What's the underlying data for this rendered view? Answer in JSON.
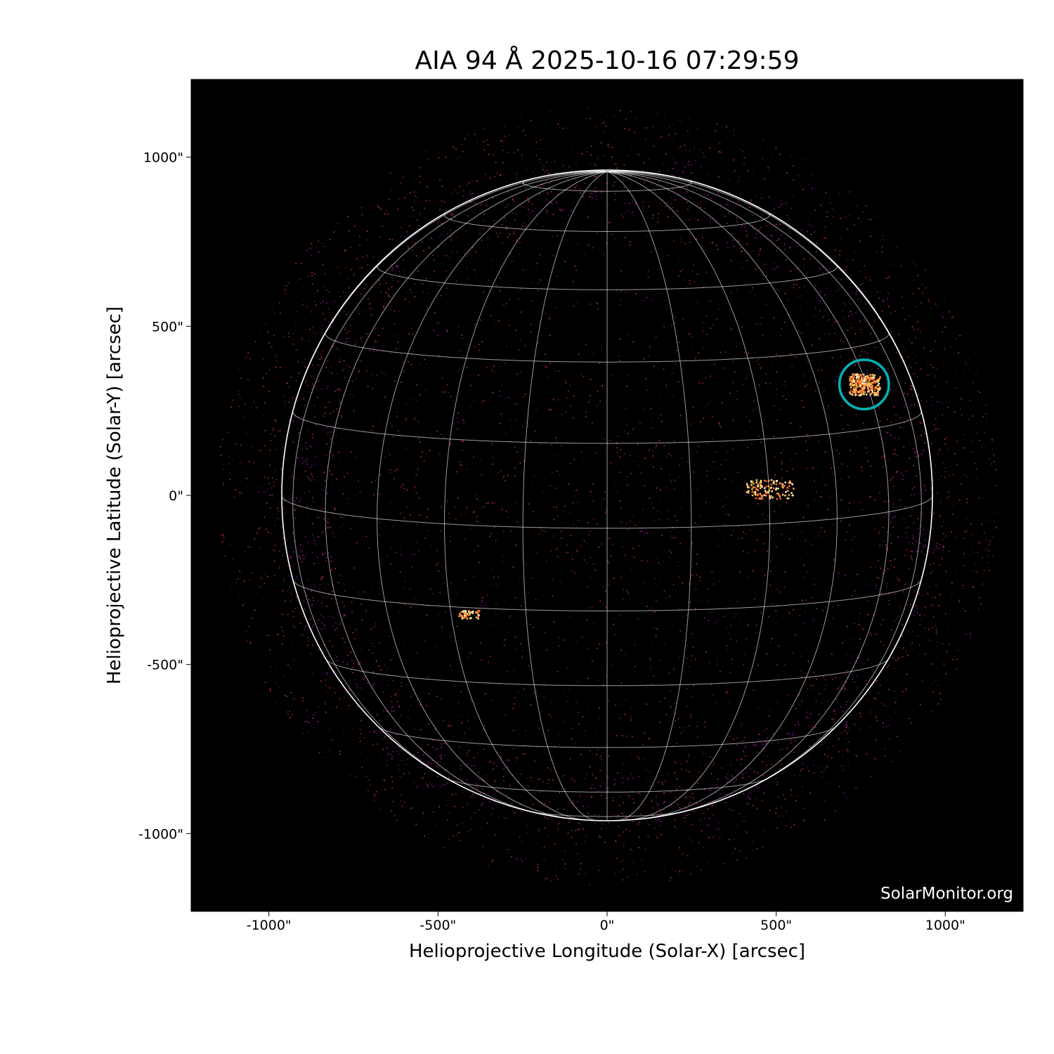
{
  "chart_data": {
    "type": "image",
    "title": "AIA 94 Å 2025-10-16 07:29:59",
    "xlabel": "Helioprojective Longitude (Solar-X) [arcsec]",
    "ylabel": "Helioprojective Latitude (Solar-Y) [arcsec]",
    "xlim": [
      -1230,
      1230
    ],
    "ylim": [
      -1230,
      1230
    ],
    "x_ticks": [
      {
        "value": -1000,
        "label": "-1000\""
      },
      {
        "value": -500,
        "label": "-500\""
      },
      {
        "value": 0,
        "label": "0\""
      },
      {
        "value": 500,
        "label": "500\""
      },
      {
        "value": 1000,
        "label": "1000\""
      }
    ],
    "y_ticks": [
      {
        "value": 1000,
        "label": "1000\""
      },
      {
        "value": 500,
        "label": "500\""
      },
      {
        "value": 0,
        "label": "0\""
      },
      {
        "value": -500,
        "label": "-500\""
      },
      {
        "value": -1000,
        "label": "-1000\""
      }
    ],
    "solar_radius_arcsec": 962,
    "heliographic_grid_spacing_deg": 15,
    "colormap": "sdoaia94",
    "background_color": "#000000",
    "grid_color": "#ffffff",
    "highlight_marker": {
      "x": 760,
      "y": 328,
      "radius": 73,
      "color": "#00b4b4"
    },
    "bright_regions": [
      {
        "x": 760,
        "y": 330
      },
      {
        "x": 480,
        "y": 20
      },
      {
        "x": -410,
        "y": -350
      }
    ],
    "watermark": "SolarMonitor.org"
  }
}
